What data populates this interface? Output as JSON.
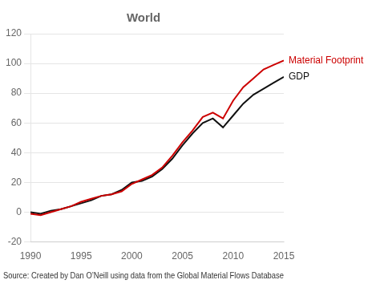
{
  "chart_data": {
    "type": "line",
    "title": "World",
    "caption": "Source: Created by Dan O’Neill using data from the Global Material Flows Database",
    "x": [
      1990,
      1991,
      1992,
      1993,
      1994,
      1995,
      1996,
      1997,
      1998,
      1999,
      2000,
      2001,
      2002,
      2003,
      2004,
      2005,
      2006,
      2007,
      2008,
      2009,
      2010,
      2011,
      2012,
      2013,
      2014,
      2015
    ],
    "series": [
      {
        "name": "Material Footprint",
        "color": "#cc0000",
        "values": [
          -1,
          -2,
          0,
          2,
          4,
          7,
          9,
          11,
          12,
          14,
          19,
          22,
          25,
          30,
          38,
          47,
          55,
          64,
          67,
          63,
          75,
          84,
          90,
          96,
          99,
          102
        ]
      },
      {
        "name": "GDP",
        "color": "#111111",
        "values": [
          0,
          -1,
          1,
          2,
          4,
          6,
          8,
          11,
          12,
          15,
          20,
          21,
          24,
          29,
          36,
          45,
          53,
          60,
          63,
          57,
          65,
          73,
          79,
          83,
          87,
          91
        ]
      }
    ],
    "xlim": [
      1990,
      2015
    ],
    "xticks": [
      1990,
      1995,
      2000,
      2005,
      2010,
      2015
    ],
    "ylim": [
      -20,
      120
    ],
    "yticks": [
      -20,
      0,
      20,
      40,
      60,
      80,
      100,
      120
    ],
    "grid": "y"
  }
}
